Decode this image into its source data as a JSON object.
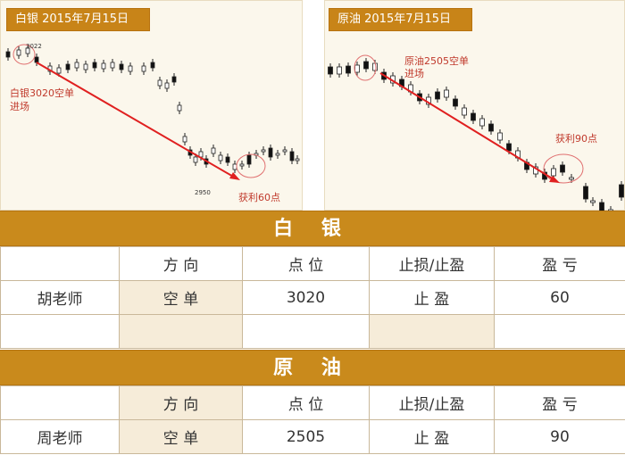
{
  "left_chart": {
    "title": "白银 2015年7月15日",
    "peak_label": "3022",
    "low_label": "2950",
    "entry_note": [
      "白银3020空单",
      "进场"
    ],
    "profit_note": "获利60点"
  },
  "right_chart": {
    "title": "原油 2015年7月15日",
    "entry_note": [
      "原油2505空单",
      "进场"
    ],
    "profit_note": "获利90点"
  },
  "silver": {
    "section_title": "白 银",
    "headers": [
      "",
      "方 向",
      "点 位",
      "止损/止盈",
      "盈 亏"
    ],
    "rows": [
      [
        "胡老师",
        "空 单",
        "3020",
        "止 盈",
        "60"
      ],
      [
        "",
        "",
        "",
        "",
        ""
      ]
    ]
  },
  "oil": {
    "section_title": "原 油",
    "headers": [
      "",
      "方 向",
      "点 位",
      "止损/止盈",
      "盈 亏"
    ],
    "rows": [
      [
        "周老师",
        "空 单",
        "2505",
        "止 盈",
        "90"
      ]
    ]
  },
  "colors": {
    "section_bg": "#c98a1c",
    "title_bg": "#c88418",
    "cell_tan": "#f6ecd9",
    "trend_line": "#e02020",
    "annotation_text": "#c0392b"
  }
}
